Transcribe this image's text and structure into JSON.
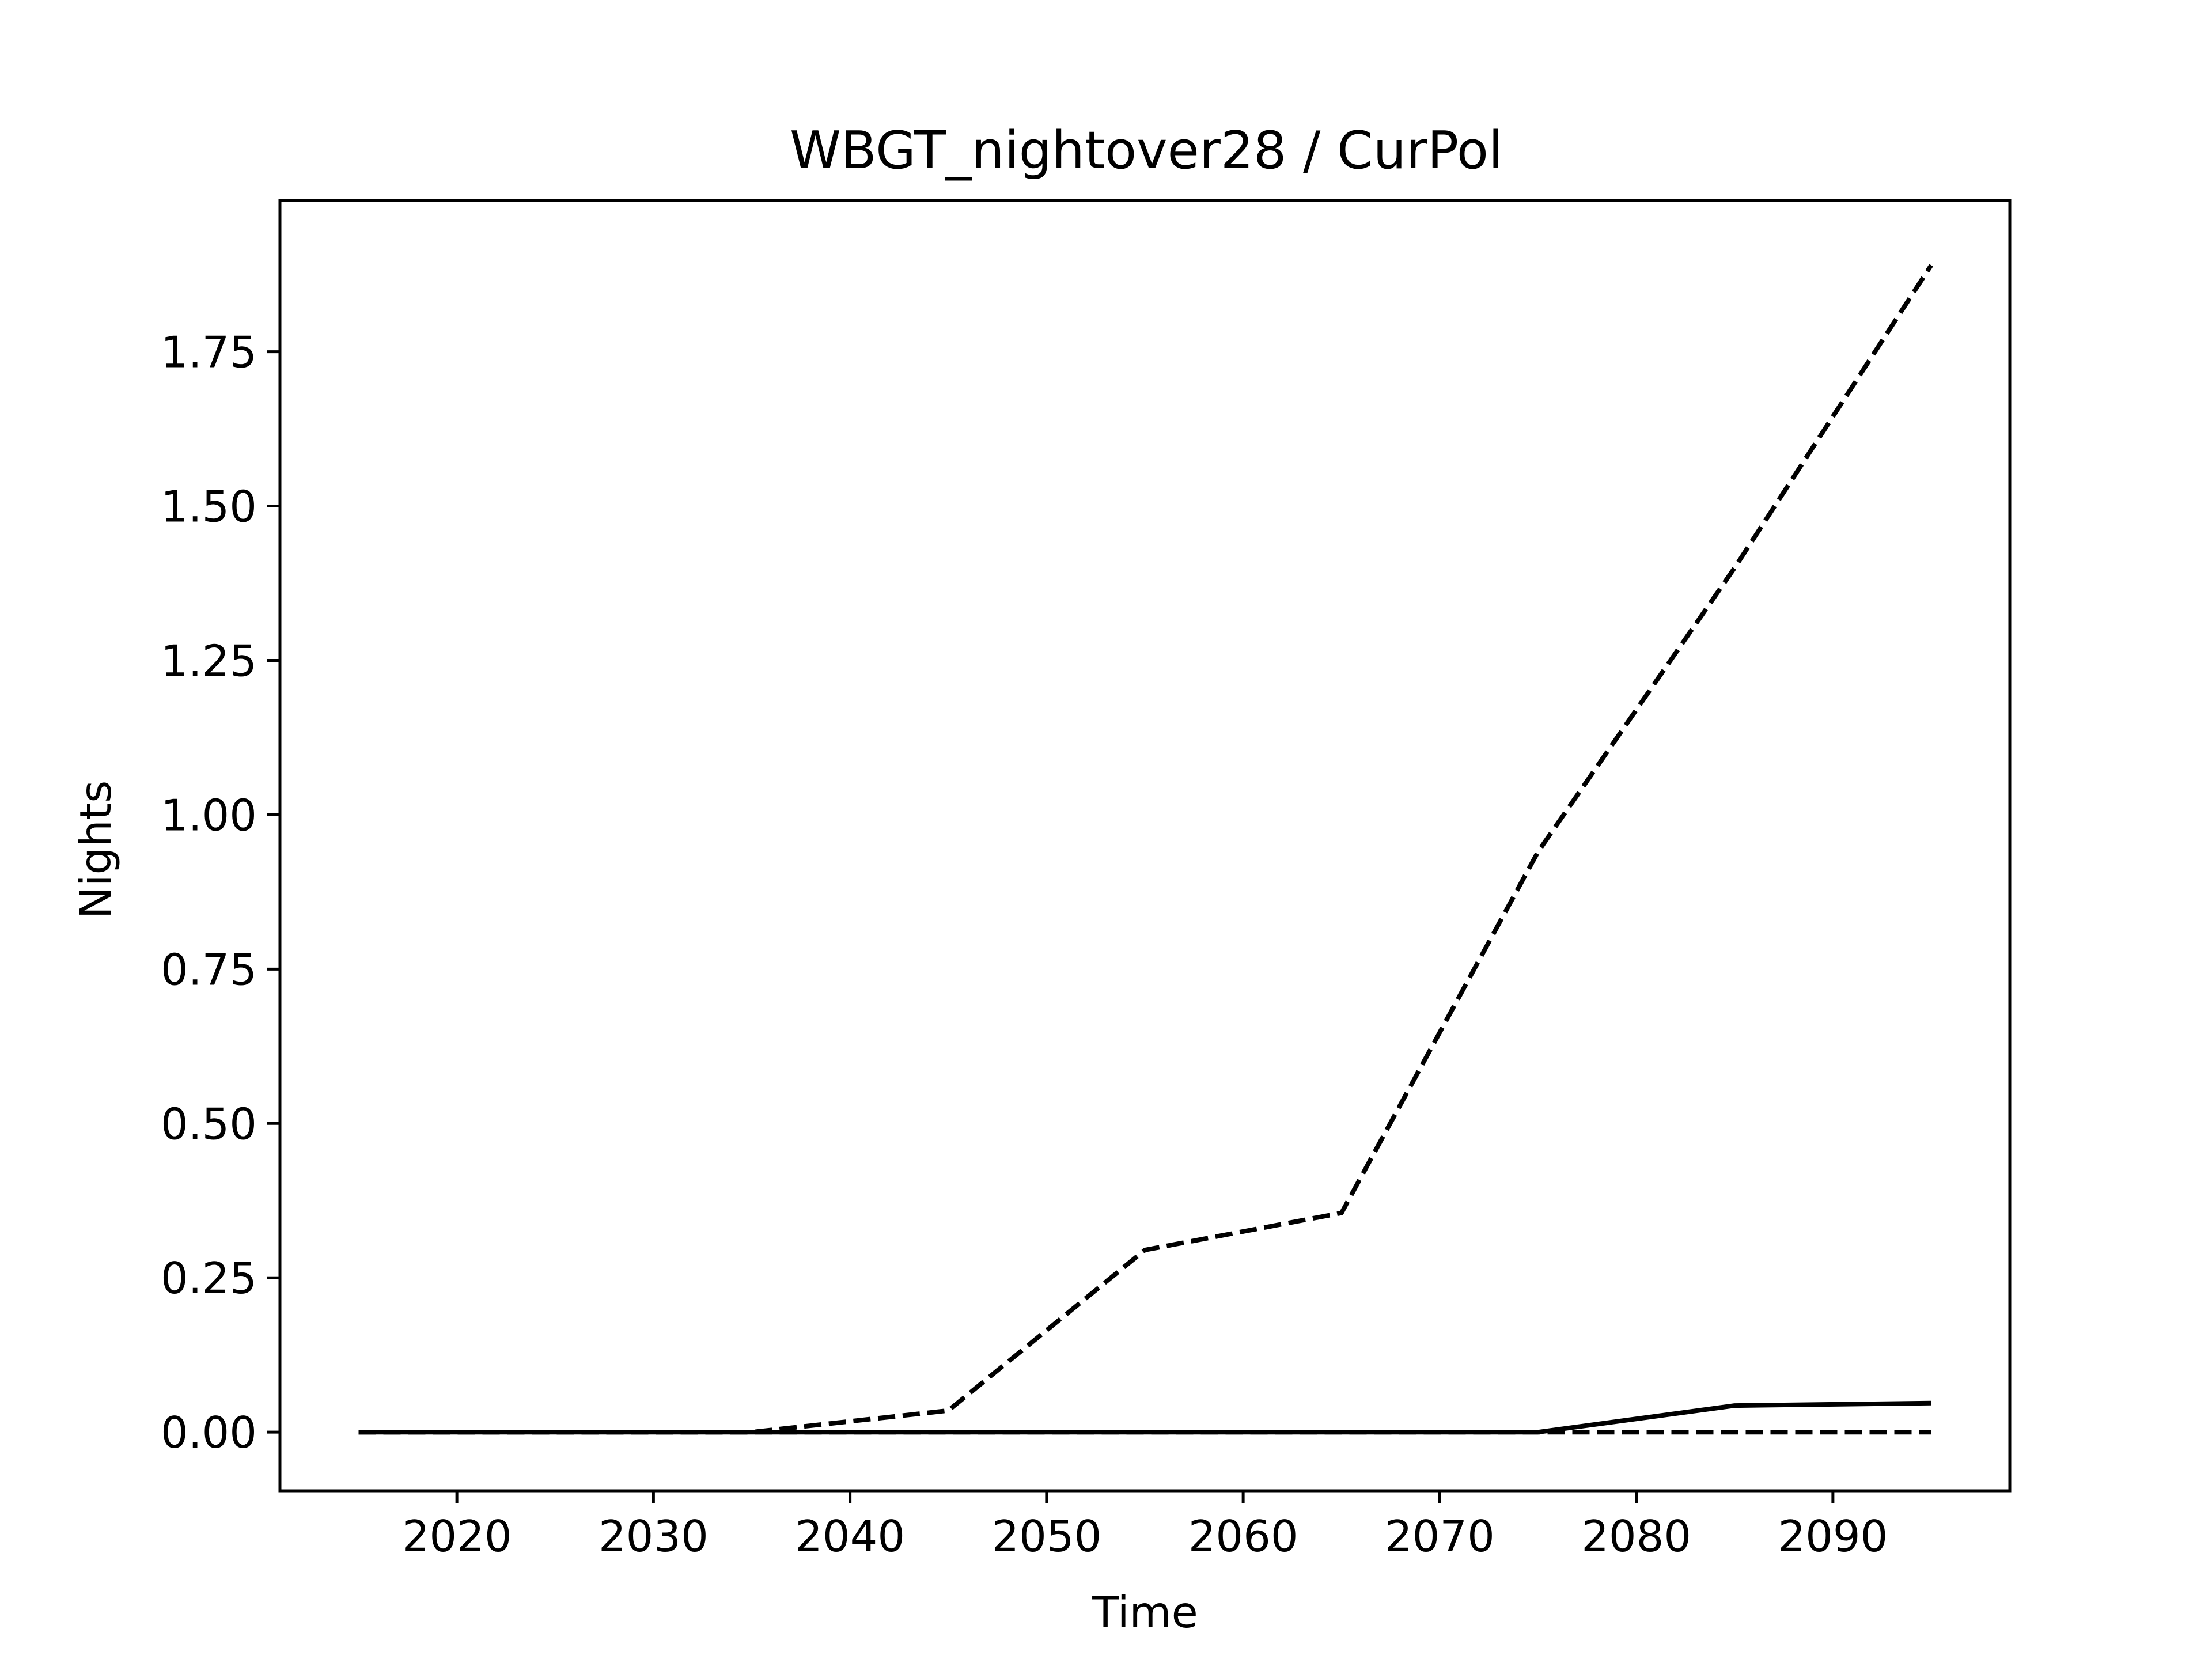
{
  "chart_data": {
    "type": "line",
    "title": "WBGT_nightover28 / CurPol",
    "xlabel": "Time",
    "ylabel": "Nights",
    "xlim": [
      2011,
      2099
    ],
    "ylim": [
      -0.095,
      1.995
    ],
    "xticks": [
      2020,
      2030,
      2040,
      2050,
      2060,
      2070,
      2080,
      2090
    ],
    "yticks": [
      0.0,
      0.25,
      0.5,
      0.75,
      1.0,
      1.25,
      1.5,
      1.75
    ],
    "ytick_labels": [
      "0.00",
      "0.25",
      "0.50",
      "0.75",
      "1.00",
      "1.25",
      "1.50",
      "1.75"
    ],
    "grid": false,
    "legend": "none",
    "line_color": "#000000",
    "series": [
      {
        "style": "dashed",
        "x": [
          2015,
          2025,
          2035,
          2045,
          2055,
          2065,
          2075,
          2085,
          2095
        ],
        "y": [
          0.0,
          0.0,
          0.0,
          0.035,
          0.295,
          0.355,
          0.94,
          1.4,
          1.89
        ]
      },
      {
        "style": "dashed",
        "x": [
          2015,
          2025,
          2035,
          2045,
          2055,
          2065,
          2075,
          2085,
          2095
        ],
        "y": [
          0.0,
          0.0,
          0.0,
          0.0,
          0.0,
          0.0,
          0.0,
          0.0,
          0.0
        ]
      },
      {
        "style": "solid",
        "x": [
          2015,
          2025,
          2035,
          2045,
          2055,
          2065,
          2075,
          2085,
          2095
        ],
        "y": [
          0.0,
          0.0,
          0.0,
          0.0,
          0.0,
          0.0,
          0.0,
          0.043,
          0.047
        ]
      }
    ]
  }
}
